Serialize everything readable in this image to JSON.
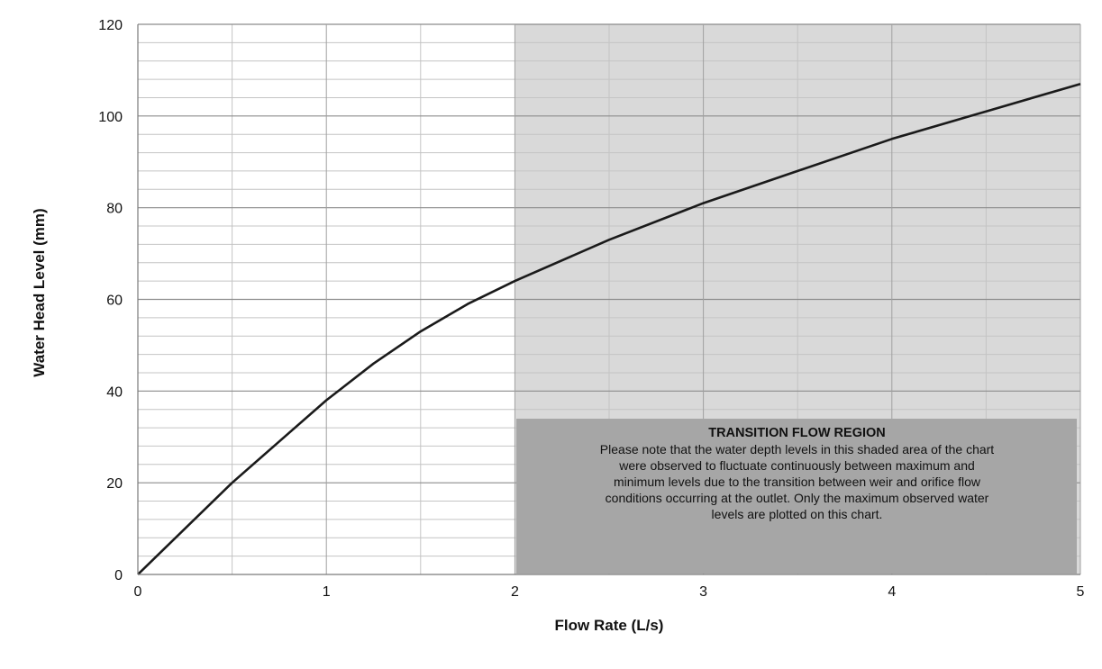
{
  "chart_data": {
    "type": "line",
    "xlabel": "Flow Rate (L/s)",
    "ylabel": "Water Head Level (mm)",
    "xlim": [
      0,
      5
    ],
    "ylim": [
      0,
      120
    ],
    "x_ticks": [
      "0",
      "1",
      "2",
      "3",
      "4",
      "5"
    ],
    "y_ticks": [
      "0",
      "20",
      "40",
      "60",
      "80",
      "100",
      "120"
    ],
    "grid": true,
    "series": [
      {
        "x": [
          0,
          0.25,
          0.5,
          0.75,
          1.0,
          1.25,
          1.5,
          1.75,
          2.0,
          2.5,
          3.0,
          3.5,
          4.0,
          4.5,
          5.0
        ],
        "y": [
          0,
          10,
          20,
          29,
          38,
          46,
          53,
          59,
          64,
          73,
          81,
          88,
          95,
          101,
          107
        ],
        "color": "#1a1a1a"
      }
    ],
    "shaded_region": {
      "x_range": [
        2,
        5
      ],
      "color": "#d9d9d9"
    },
    "annotation": {
      "title": "TRANSITION FLOW REGION",
      "text_lines": [
        "Please note that the water depth levels in this shaded area of the chart",
        "were observed to fluctuate continuously between maximum and",
        "minimum levels due to the transition between weir and orifice flow",
        "conditions occurring at the outlet. Only the maximum observed  water",
        "levels are plotted on this chart."
      ],
      "color": "#a6a6a6"
    }
  }
}
